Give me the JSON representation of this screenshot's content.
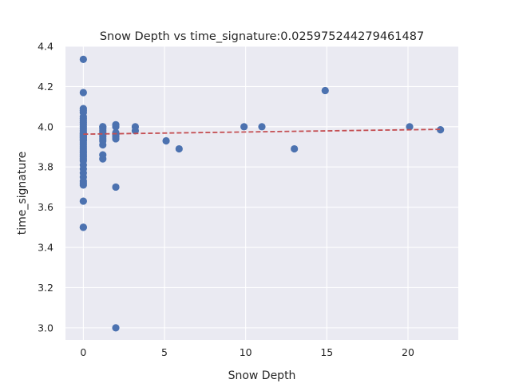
{
  "chart_data": {
    "type": "scatter",
    "title": "Snow Depth vs time_signature:0.025975244279461487",
    "xlabel": "Snow Depth",
    "ylabel": "time_signature",
    "xlim": [
      -1.1,
      23.1
    ],
    "ylim": [
      2.94,
      4.4
    ],
    "x_ticks": [
      0,
      5,
      10,
      15,
      20
    ],
    "y_ticks": [
      3.0,
      3.2,
      3.4,
      3.6,
      3.8,
      4.0,
      4.2,
      4.4
    ],
    "y_tick_labels": [
      "3.0",
      "3.2",
      "3.4",
      "3.6",
      "3.8",
      "4.0",
      "4.2",
      "4.4"
    ],
    "grid": true,
    "colors": {
      "background": "#eaeaf2",
      "grid": "#ffffff",
      "points": "#4c72b0",
      "trend": "#c44e52"
    },
    "trend_line": {
      "style": "dashed",
      "x": [
        0,
        22
      ],
      "y": [
        3.963,
        3.987
      ]
    },
    "series": [
      {
        "x": [
          0,
          0,
          0,
          0,
          0,
          0,
          0,
          0,
          0,
          0,
          0,
          0,
          0,
          0,
          0,
          0,
          0,
          0,
          0,
          0,
          0,
          0,
          0,
          0,
          0,
          0,
          0,
          0,
          0,
          0,
          0,
          0,
          0,
          0,
          0,
          0,
          0,
          0,
          0,
          0,
          0,
          0,
          1.2,
          1.2,
          1.2,
          1.2,
          1.2,
          1.2,
          1.2,
          1.2,
          1.2,
          1.2,
          1.2,
          1.2,
          2,
          2,
          2,
          2,
          2,
          2,
          2,
          2,
          3.2,
          3.2,
          5.1,
          5.9,
          9.9,
          11,
          13,
          14.9,
          20.1,
          22
        ],
        "y": [
          4.335,
          4.17,
          4.09,
          4.08,
          4.07,
          4.05,
          4.04,
          4.03,
          4.02,
          4.01,
          4.0,
          3.99,
          3.98,
          3.97,
          3.965,
          3.96,
          3.955,
          3.95,
          3.945,
          3.94,
          3.935,
          3.93,
          3.92,
          3.91,
          3.9,
          3.89,
          3.88,
          3.87,
          3.86,
          3.85,
          3.83,
          3.81,
          3.79,
          3.77,
          3.75,
          3.73,
          3.71,
          3.63,
          3.5,
          3.5,
          3.72,
          3.84,
          4.0,
          3.99,
          3.98,
          3.97,
          3.96,
          3.95,
          3.94,
          3.93,
          3.91,
          3.86,
          3.84,
          4.0,
          4.01,
          4.0,
          3.97,
          3.96,
          3.95,
          3.94,
          3.7,
          3.0,
          4.0,
          3.98,
          3.93,
          3.89,
          4.0,
          4.0,
          3.89,
          4.18,
          4.0,
          3.985
        ]
      }
    ]
  }
}
